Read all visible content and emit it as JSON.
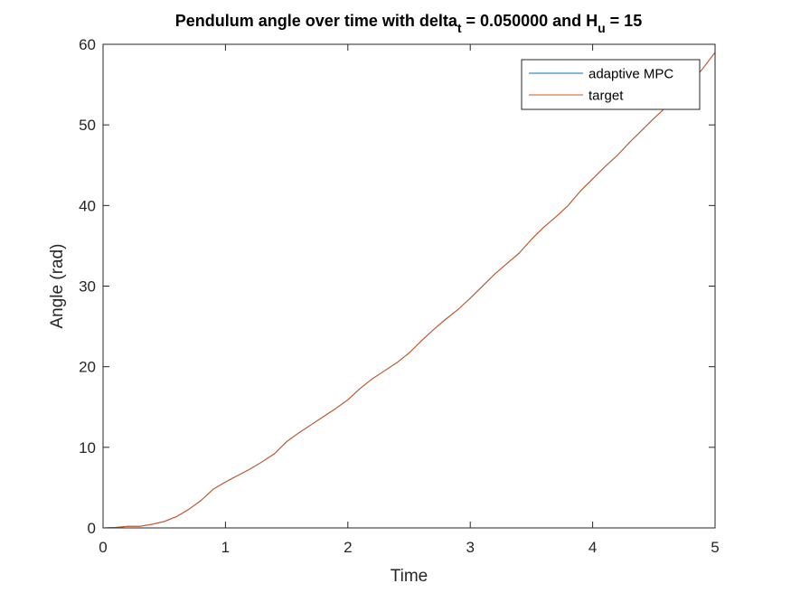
{
  "chart_data": {
    "type": "line",
    "title": {
      "main": "Pendulum angle over time with delta",
      "sub1": "t",
      "mid": " = 0.050000 and H",
      "sub2": "u",
      "end": " = 15"
    },
    "xlabel": "Time",
    "ylabel": "Angle (rad)",
    "xlim": [
      0,
      5
    ],
    "ylim": [
      0,
      60
    ],
    "xticks": [
      0,
      1,
      2,
      3,
      4,
      5
    ],
    "yticks": [
      0,
      10,
      20,
      30,
      40,
      50,
      60
    ],
    "grid": false,
    "legend_position": "top-right",
    "series": [
      {
        "name": "adaptive MPC",
        "color": "#0072BD",
        "x": [
          0,
          0.1,
          0.2,
          0.3,
          0.4,
          0.5,
          0.6,
          0.7,
          0.8,
          0.9,
          1.0,
          1.1,
          1.2,
          1.3,
          1.4,
          1.5,
          1.6,
          1.7,
          1.8,
          1.9,
          2.0,
          2.1,
          2.2,
          2.3,
          2.4,
          2.5,
          2.6,
          2.7,
          2.8,
          2.9,
          3.0,
          3.1,
          3.2,
          3.3,
          3.4,
          3.5,
          3.6,
          3.7,
          3.8,
          3.9,
          4.0,
          4.1,
          4.2,
          4.3,
          4.4,
          4.5,
          4.6,
          4.7,
          4.8,
          4.9,
          5.0
        ],
        "y": [
          0,
          0.05,
          0.2,
          0.2,
          0.45,
          0.8,
          1.4,
          2.3,
          3.4,
          4.8,
          5.7,
          6.5,
          7.3,
          8.2,
          9.2,
          10.7,
          11.8,
          12.8,
          13.8,
          14.8,
          15.9,
          17.3,
          18.5,
          19.5,
          20.5,
          21.7,
          23.2,
          24.6,
          25.9,
          27.1,
          28.5,
          30.0,
          31.5,
          32.8,
          34.1,
          35.8,
          37.3,
          38.6,
          40.0,
          41.8,
          43.3,
          44.8,
          46.2,
          47.8,
          49.3,
          50.8,
          52.2,
          53.6,
          55.1,
          57.0,
          59.0
        ]
      },
      {
        "name": "target",
        "color": "#D95319",
        "x": [
          0,
          0.1,
          0.2,
          0.3,
          0.4,
          0.5,
          0.6,
          0.7,
          0.8,
          0.9,
          1.0,
          1.1,
          1.2,
          1.3,
          1.4,
          1.5,
          1.6,
          1.7,
          1.8,
          1.9,
          2.0,
          2.1,
          2.2,
          2.3,
          2.4,
          2.5,
          2.6,
          2.7,
          2.8,
          2.9,
          3.0,
          3.1,
          3.2,
          3.3,
          3.4,
          3.5,
          3.6,
          3.7,
          3.8,
          3.9,
          4.0,
          4.1,
          4.2,
          4.3,
          4.4,
          4.5,
          4.6,
          4.7,
          4.8,
          4.9,
          5.0
        ],
        "y": [
          0,
          0.05,
          0.2,
          0.2,
          0.45,
          0.8,
          1.4,
          2.3,
          3.4,
          4.8,
          5.7,
          6.5,
          7.3,
          8.2,
          9.2,
          10.7,
          11.8,
          12.8,
          13.8,
          14.8,
          15.9,
          17.3,
          18.5,
          19.5,
          20.5,
          21.7,
          23.2,
          24.6,
          25.9,
          27.1,
          28.5,
          30.0,
          31.5,
          32.8,
          34.1,
          35.8,
          37.3,
          38.6,
          40.0,
          41.8,
          43.3,
          44.8,
          46.2,
          47.8,
          49.3,
          50.8,
          52.2,
          53.6,
          55.1,
          57.0,
          59.0
        ]
      }
    ]
  }
}
